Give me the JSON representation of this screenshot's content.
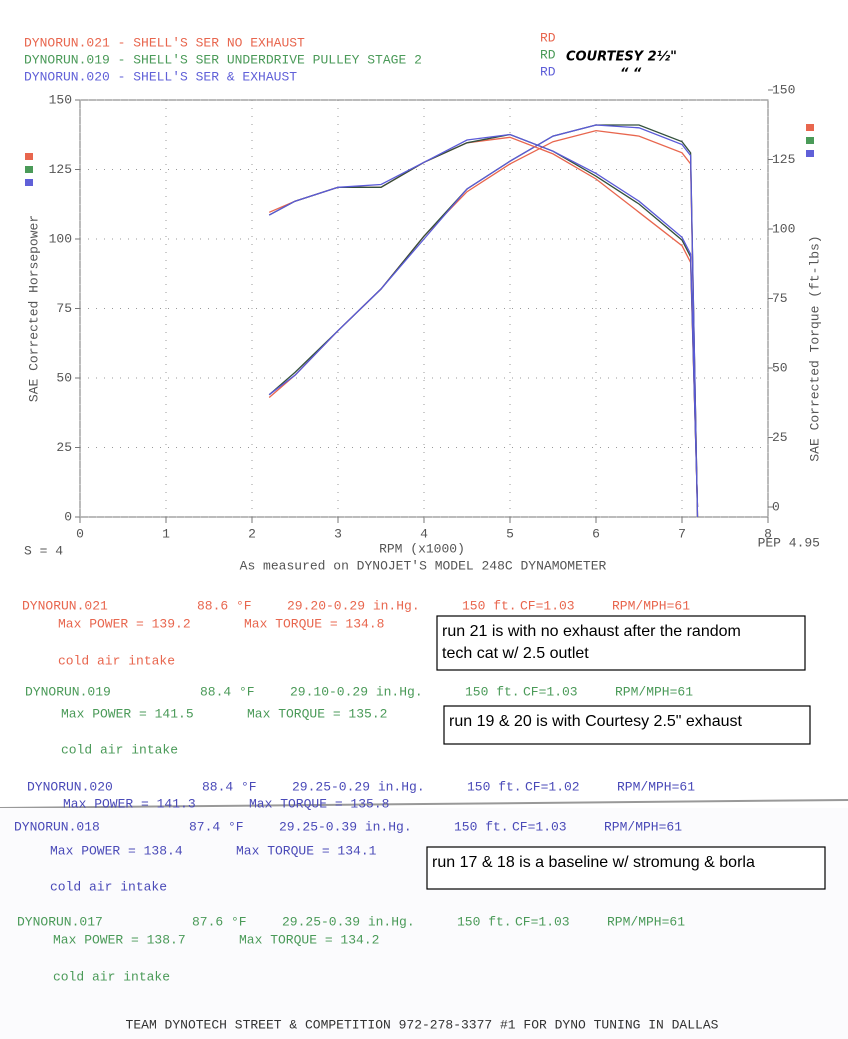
{
  "chart_data": {
    "type": "line",
    "legend": [
      "DYNORUN.021 - SHELL'S SER NO EXHAUST",
      "DYNORUN.019 - SHELL'S SER UNDERDRIVE PULLEY STAGE 2",
      "DYNORUN.020 - SHELL'S SER & EXHAUST"
    ],
    "legend_tags": [
      "RD",
      "RD",
      "RD"
    ],
    "annotations": [
      "COURTESY 2½\"",
      "“    “"
    ],
    "ylabel": "SAE Corrected Horsepower",
    "y2label": "SAE Corrected Torque (ft-lbs)",
    "xlabel": "RPM (x1000)",
    "smoothing": "S = 4",
    "pep": "PEP 4.95",
    "subtitle": "As measured on DYNOJET'S MODEL 248C DYNAMOMETER",
    "x": [
      2.2,
      2.5,
      3,
      3.5,
      4,
      4.5,
      5,
      5.5,
      6,
      6.5,
      7,
      7.1,
      7.18
    ],
    "series": [
      {
        "name": "DYNORUN.021",
        "color": "#e8664e",
        "values": [
          43,
          51,
          67,
          82,
          101,
          117,
          127,
          135,
          139,
          137,
          131,
          127,
          0
        ]
      },
      {
        "name": "DYNORUN.019",
        "color": "#33503c",
        "values": [
          44,
          52,
          67,
          82,
          101,
          118,
          128,
          137,
          141,
          141,
          135,
          131,
          0
        ]
      },
      {
        "name": "DYNORUN.020",
        "color": "#5a5ad8",
        "values": [
          44,
          51,
          67,
          82,
          100,
          118,
          128,
          137,
          141,
          140,
          134,
          130,
          0
        ]
      },
      {
        "name": "DYNORUN.021 torque",
        "color": "#e8664e",
        "axis": "y2",
        "values": [
          106,
          110,
          115,
          115,
          124,
          131,
          133,
          127,
          118,
          106,
          94,
          88,
          0
        ]
      },
      {
        "name": "DYNORUN.019 torque",
        "color": "#33503c",
        "axis": "y2",
        "values": [
          105,
          110,
          115,
          115,
          124,
          131,
          134,
          128,
          119,
          109,
          96,
          90,
          0
        ]
      },
      {
        "name": "DYNORUN.020 torque",
        "color": "#5a5ad8",
        "axis": "y2",
        "values": [
          105,
          110,
          115,
          116,
          124,
          132,
          134,
          128,
          120,
          110,
          97,
          91,
          0
        ]
      }
    ],
    "xlim": [
      0,
      8
    ],
    "xticks": [
      0,
      1,
      2,
      3,
      4,
      5,
      6,
      7,
      8
    ],
    "ylim": [
      0,
      150
    ],
    "yticks": [
      0,
      25,
      50,
      75,
      100,
      125,
      150
    ],
    "y2lim": [
      0,
      150
    ],
    "y2ticks": [
      0,
      25,
      50,
      75,
      100,
      125,
      150
    ],
    "grid": true
  },
  "runs": [
    {
      "name": "DYNORUN.021",
      "temp": "88.6 °F",
      "pressure": "29.20-0.29 in.Hg.",
      "altitude": "150 ft.",
      "cf": "CF=1.03",
      "ratio": "RPM/MPH=61",
      "power": "Max POWER = 139.2",
      "torque": "Max TORQUE = 134.8",
      "note": "cold air intake"
    },
    {
      "name": "DYNORUN.019",
      "temp": "88.4 °F",
      "pressure": "29.10-0.29 in.Hg.",
      "altitude": "150 ft.",
      "cf": "CF=1.03",
      "ratio": "RPM/MPH=61",
      "power": "Max POWER = 141.5",
      "torque": "Max TORQUE = 135.2",
      "note": "cold air intake"
    },
    {
      "name": "DYNORUN.020",
      "temp": "88.4 °F",
      "pressure": "29.25-0.29 in.Hg.",
      "altitude": "150 ft.",
      "cf": "CF=1.02",
      "ratio": "RPM/MPH=61",
      "power": "Max POWER = 141.3",
      "torque": "Max TORQUE = 135.8"
    },
    {
      "name": "DYNORUN.018",
      "temp": "87.4 °F",
      "pressure": "29.25-0.39 in.Hg.",
      "altitude": "150 ft.",
      "cf": "CF=1.03",
      "ratio": "RPM/MPH=61",
      "power": "Max POWER = 138.4",
      "torque": "Max TORQUE = 134.1",
      "note": "cold air intake"
    },
    {
      "name": "DYNORUN.017",
      "temp": "87.6 °F",
      "pressure": "29.25-0.39 in.Hg.",
      "altitude": "150 ft.",
      "cf": "CF=1.03",
      "ratio": "RPM/MPH=61",
      "power": "Max POWER = 138.7",
      "torque": "Max TORQUE = 134.2",
      "note": "cold air intake"
    }
  ],
  "notes": [
    [
      "run 21 is with no exhaust after the random",
      "tech cat w/ 2.5 outlet"
    ],
    [
      "run 19 & 20 is with Courtesy 2.5\" exhaust"
    ],
    [
      "run 17 & 18 is a baseline w/ stromung & borla"
    ]
  ],
  "footer": "TEAM DYNOTECH STREET & COMPETITION 972-278-3377 #1 FOR DYNO TUNING IN DALLAS"
}
